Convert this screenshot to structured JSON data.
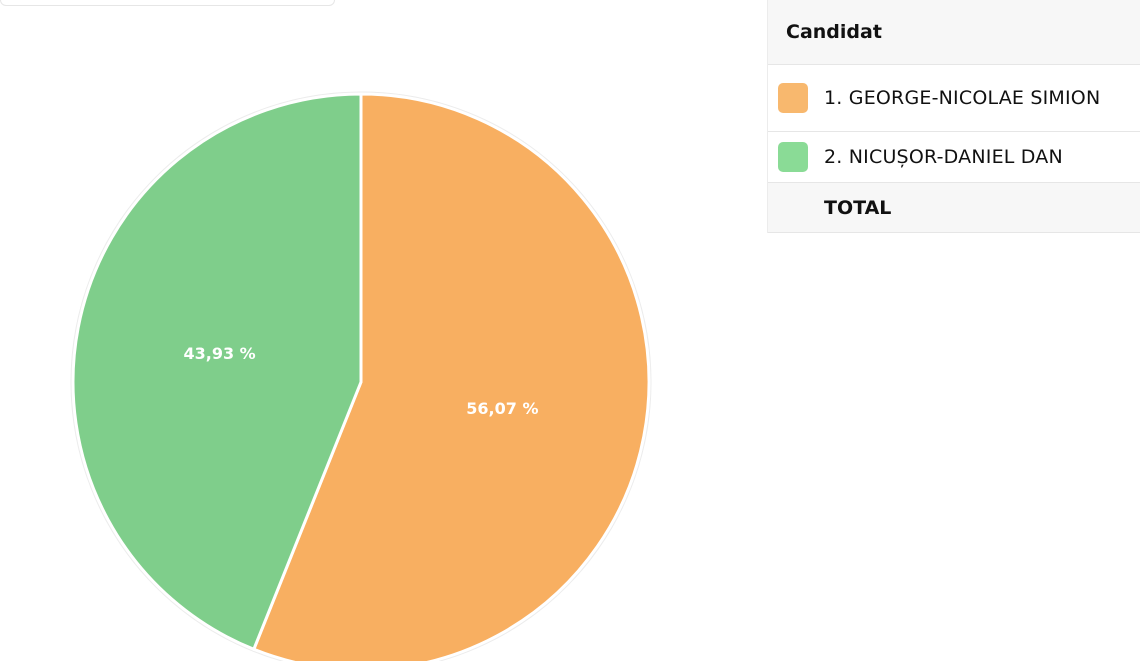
{
  "chart_data": {
    "type": "pie",
    "title": "",
    "slices": [
      {
        "label": "1. GEORGE-NICOLAE SIMION",
        "value": 56.07,
        "display": "56,07 %",
        "color": "#F8AF61"
      },
      {
        "label": "2. NICUȘOR-DANIEL DAN",
        "value": 43.93,
        "display": "43,93 %",
        "color": "#7FCE8B"
      }
    ],
    "start_angle_deg": 0,
    "direction": "clockwise"
  },
  "legend": {
    "header": "Candidat",
    "total_label": "TOTAL",
    "swatch_colors": [
      "#F8B86E",
      "#8ADB96"
    ]
  }
}
